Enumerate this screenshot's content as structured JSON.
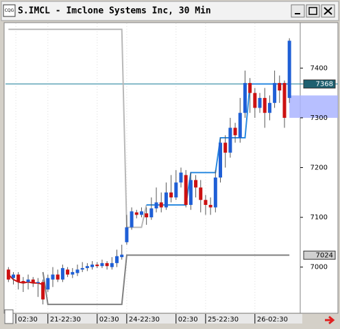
{
  "window": {
    "title": "S.IMCL - Imclone Systems Inc, 30 Min",
    "app_icon": "CQG"
  },
  "chart_data": {
    "type": "candlestick",
    "ylim": [
      6910,
      7490
    ],
    "yticks": [
      7000,
      7100,
      7200,
      7300,
      7400
    ],
    "xlim": [
      -0.6,
      59.2
    ],
    "xticks": [
      {
        "value": 1.5,
        "label": "02:30"
      },
      {
        "value": 8,
        "label": "21-22:30"
      },
      {
        "value": 18,
        "label": "02:30"
      },
      {
        "value": 24,
        "label": "24-22:30"
      },
      {
        "value": 34,
        "label": "02:30"
      },
      {
        "value": 40,
        "label": "25-22:30"
      },
      {
        "value": 50,
        "label": "26-02:30"
      }
    ],
    "up_color": "#1f5fd6",
    "down_color": "#cc1111",
    "open": [
      6995,
      6978,
      6985,
      6972,
      6970,
      6975,
      6968,
      6970,
      6955,
      6975,
      6985,
      6975,
      6995,
      6985,
      6988,
      6995,
      6998,
      7000,
      7005,
      7002,
      7008,
      7000,
      7008,
      7020,
      7050,
      7080,
      7110,
      7105,
      7108,
      7100,
      7118,
      7130,
      7120,
      7150,
      7140,
      7170,
      7185,
      7125,
      7175,
      7160,
      7135,
      7125,
      7120,
      7180,
      7250,
      7230,
      7280,
      7260,
      7310,
      7370,
      7350,
      7320,
      7340,
      7310,
      7330,
      7370,
      7370,
      7340
    ],
    "high": [
      7000,
      6990,
      6990,
      6980,
      6985,
      6980,
      6978,
      6975,
      6985,
      7000,
      6995,
      7005,
      7000,
      6998,
      7005,
      7010,
      7008,
      7012,
      7010,
      7015,
      7012,
      7020,
      7035,
      7045,
      7105,
      7120,
      7115,
      7120,
      7120,
      7140,
      7160,
      7150,
      7170,
      7185,
      7195,
      7200,
      7195,
      7190,
      7185,
      7175,
      7145,
      7140,
      7195,
      7260,
      7265,
      7300,
      7290,
      7340,
      7395,
      7380,
      7360,
      7350,
      7360,
      7345,
      7395,
      7385,
      7375,
      7460
    ],
    "low": [
      6970,
      6965,
      6955,
      6950,
      6955,
      6960,
      6940,
      6925,
      6950,
      6960,
      6970,
      6970,
      6980,
      6978,
      6982,
      6990,
      6992,
      6995,
      6998,
      6998,
      6995,
      6995,
      7000,
      7015,
      7045,
      7075,
      7098,
      7100,
      7085,
      7095,
      7110,
      7110,
      7115,
      7130,
      7135,
      7160,
      7120,
      7115,
      7140,
      7110,
      7105,
      7105,
      7110,
      7170,
      7200,
      7220,
      7250,
      7250,
      7300,
      7310,
      7300,
      7310,
      7280,
      7295,
      7320,
      7330,
      7280,
      7330
    ],
    "close": [
      6975,
      6985,
      6970,
      6968,
      6975,
      6968,
      6970,
      6935,
      6978,
      6985,
      6975,
      6998,
      6985,
      6990,
      6995,
      6998,
      7002,
      7005,
      7002,
      7008,
      7002,
      7008,
      7022,
      7025,
      7080,
      7112,
      7105,
      7112,
      7100,
      7118,
      7130,
      7120,
      7150,
      7140,
      7170,
      7190,
      7125,
      7175,
      7160,
      7135,
      7125,
      7120,
      7180,
      7250,
      7230,
      7280,
      7265,
      7310,
      7370,
      7350,
      7320,
      7340,
      7310,
      7330,
      7370,
      7355,
      7300,
      7455
    ],
    "series": [
      {
        "color": "#b8b8b8",
        "values": [
          7478,
          7478,
          7478,
          7478,
          7478,
          7478,
          7478,
          7478,
          7478,
          7478,
          7478,
          7478,
          7478,
          7478,
          7478,
          7478,
          7478,
          7478,
          7478,
          7478,
          7478,
          7478,
          7478,
          7478,
          7080,
          7080,
          7080,
          7080,
          7125,
          null,
          null,
          null,
          null,
          null,
          null,
          null,
          null,
          null,
          null,
          null,
          null,
          null,
          null,
          null,
          null,
          null,
          null,
          null,
          null,
          null,
          null,
          null,
          null,
          null,
          null,
          null,
          null,
          null
        ]
      },
      {
        "color": "#808080",
        "values": [
          null,
          null,
          null,
          null,
          null,
          null,
          null,
          6990,
          6925,
          6925,
          6925,
          6925,
          6925,
          6925,
          6925,
          6925,
          6925,
          6925,
          6925,
          6925,
          6925,
          6925,
          6925,
          6925,
          7024,
          7024,
          7024,
          7024,
          7024,
          7024,
          7024,
          7024,
          7024,
          7024,
          7024,
          7024,
          7024,
          7024,
          7024,
          7024,
          7024,
          7024,
          7024,
          7024,
          7024,
          7024,
          7024,
          7024,
          7024,
          7024,
          7024,
          7024,
          7024,
          7024,
          7024,
          7024,
          7024,
          7024
        ]
      },
      {
        "color": "#2a8ae0",
        "values": [
          null,
          null,
          null,
          null,
          null,
          null,
          null,
          null,
          null,
          null,
          null,
          null,
          null,
          null,
          null,
          null,
          null,
          null,
          null,
          null,
          null,
          null,
          null,
          null,
          null,
          null,
          null,
          null,
          7125,
          7125,
          7125,
          7125,
          7125,
          7125,
          7125,
          7125,
          7125,
          7190,
          7190,
          7190,
          7190,
          7190,
          7190,
          7260,
          7260,
          7260,
          7260,
          7260,
          7260,
          7368,
          7368,
          7368,
          7368,
          7368,
          7368,
          7368,
          7368,
          7368
        ]
      },
      {
        "color": "#cc1111",
        "values": [
          6985,
          6975,
          6970,
          6968,
          6970,
          6968,
          6968,
          6965,
          null,
          null,
          null,
          null,
          null,
          null,
          null,
          null,
          null,
          null,
          null,
          null,
          null,
          null,
          null,
          null,
          null,
          null,
          null,
          null,
          null,
          null,
          null,
          null,
          null,
          null,
          null,
          null,
          null,
          null,
          null,
          null,
          null,
          null,
          null,
          null,
          null,
          null,
          null,
          null,
          null,
          null,
          null,
          null,
          null,
          null,
          null,
          null,
          null,
          null
        ]
      }
    ],
    "price_lines": [
      {
        "value": 7368,
        "color": "#1e7f9a",
        "full": true
      },
      {
        "value": 7024,
        "color": "#808080",
        "full": false
      }
    ],
    "zone": {
      "from": 7300,
      "to": 7345,
      "color": "#aab4ff"
    }
  }
}
